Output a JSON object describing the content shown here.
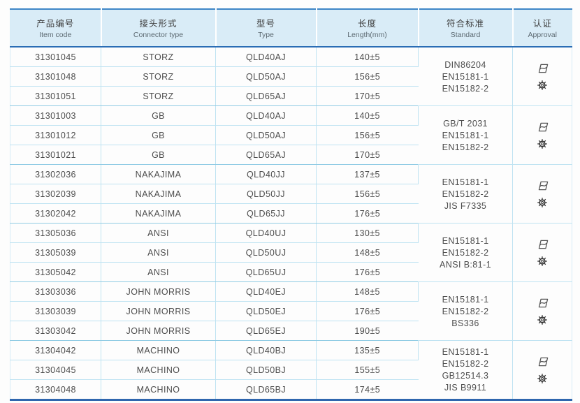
{
  "colors": {
    "header_bg": "#d9ecf7",
    "table_top_border": "#3d85c6",
    "header_bottom_border": "#2a6db5",
    "table_bottom_border": "#2f66ae",
    "row_divider": "#bfe3f2",
    "group_divider": "#8fcbe4",
    "body_text": "#4d4d4d"
  },
  "table": {
    "columns": [
      {
        "zh": "产品编号",
        "en": "Item code"
      },
      {
        "zh": "接头形式",
        "en": "Connector type"
      },
      {
        "zh": "型号",
        "en": "Type"
      },
      {
        "zh": "长度",
        "en": "Length(mm)"
      },
      {
        "zh": "符合标准",
        "en": "Standard"
      },
      {
        "zh": "认证",
        "en": "Approval"
      }
    ],
    "groups": [
      {
        "rows": [
          {
            "item_code": "31301045",
            "connector_type": "STORZ",
            "type": "QLD40AJ",
            "length": "140±5"
          },
          {
            "item_code": "31301048",
            "connector_type": "STORZ",
            "type": "QLD50AJ",
            "length": "156±5"
          },
          {
            "item_code": "31301051",
            "connector_type": "STORZ",
            "type": "QLD65AJ",
            "length": "170±5"
          }
        ],
        "standards": [
          "DIN86204",
          "EN15181-1",
          "EN15182-2"
        ],
        "approval_icons": [
          "certification-flag-icon",
          "wheelmark-icon"
        ]
      },
      {
        "rows": [
          {
            "item_code": "31301003",
            "connector_type": "GB",
            "type": "QLD40AJ",
            "length": "140±5"
          },
          {
            "item_code": "31301012",
            "connector_type": "GB",
            "type": "QLD50AJ",
            "length": "156±5"
          },
          {
            "item_code": "31301021",
            "connector_type": "GB",
            "type": "QLD65AJ",
            "length": "170±5"
          }
        ],
        "standards": [
          "GB/T 2031",
          "EN15181-1",
          "EN15182-2"
        ],
        "approval_icons": [
          "certification-flag-icon",
          "wheelmark-icon"
        ]
      },
      {
        "rows": [
          {
            "item_code": "31302036",
            "connector_type": "NAKAJIMA",
            "type": "QLD40JJ",
            "length": "137±5"
          },
          {
            "item_code": "31302039",
            "connector_type": "NAKAJIMA",
            "type": "QLD50JJ",
            "length": "156±5"
          },
          {
            "item_code": "31302042",
            "connector_type": "NAKAJIMA",
            "type": "QLD65JJ",
            "length": "176±5"
          }
        ],
        "standards": [
          "EN15181-1",
          "EN15182-2",
          "JIS F7335"
        ],
        "approval_icons": [
          "certification-flag-icon",
          "wheelmark-icon"
        ]
      },
      {
        "rows": [
          {
            "item_code": "31305036",
            "connector_type": "ANSI",
            "type": "QLD40UJ",
            "length": "130±5"
          },
          {
            "item_code": "31305039",
            "connector_type": "ANSI",
            "type": "QLD50UJ",
            "length": "148±5"
          },
          {
            "item_code": "31305042",
            "connector_type": "ANSI",
            "type": "QLD65UJ",
            "length": "176±5"
          }
        ],
        "standards": [
          "EN15181-1",
          "EN15182-2",
          "ANSI B:81-1"
        ],
        "approval_icons": [
          "certification-flag-icon",
          "wheelmark-icon"
        ]
      },
      {
        "rows": [
          {
            "item_code": "31303036",
            "connector_type": "JOHN MORRIS",
            "type": "QLD40EJ",
            "length": "148±5"
          },
          {
            "item_code": "31303039",
            "connector_type": "JOHN MORRIS",
            "type": "QLD50EJ",
            "length": "176±5"
          },
          {
            "item_code": "31303042",
            "connector_type": "JOHN MORRIS",
            "type": "QLD65EJ",
            "length": "190±5"
          }
        ],
        "standards": [
          "EN15181-1",
          "EN15182-2",
          "BS336"
        ],
        "approval_icons": [
          "certification-flag-icon",
          "wheelmark-icon"
        ]
      },
      {
        "rows": [
          {
            "item_code": "31304042",
            "connector_type": "MACHINO",
            "type": "QLD40BJ",
            "length": "135±5"
          },
          {
            "item_code": "31304045",
            "connector_type": "MACHINO",
            "type": "QLD50BJ",
            "length": "155±5"
          },
          {
            "item_code": "31304048",
            "connector_type": "MACHINO",
            "type": "QLD65BJ",
            "length": "174±5"
          }
        ],
        "standards": [
          "EN15181-1",
          "EN15182-2",
          "GB12514.3",
          "JIS B9911"
        ],
        "approval_icons": [
          "certification-flag-icon",
          "wheelmark-icon"
        ]
      }
    ]
  }
}
